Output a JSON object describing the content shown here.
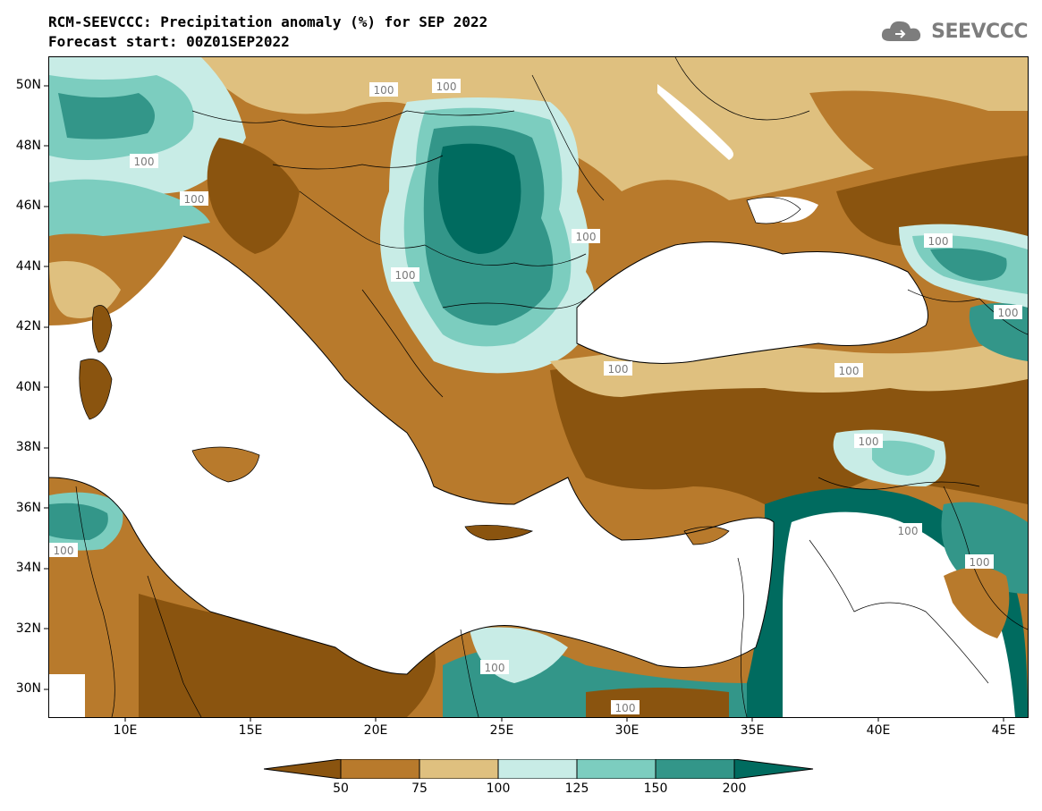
{
  "header": {
    "title_line1": "RCM-SEEVCCC: Precipitation anomaly (%) for SEP 2022",
    "title_line2": "Forecast start: 00Z01SEP2022",
    "logo_text": "SEEVCCC"
  },
  "map": {
    "lat_labels": [
      "50N",
      "48N",
      "46N",
      "44N",
      "42N",
      "40N",
      "38N",
      "36N",
      "34N",
      "32N",
      "30N"
    ],
    "lon_labels": [
      "10E",
      "15E",
      "20E",
      "25E",
      "30E",
      "35E",
      "40E",
      "45E"
    ],
    "contour_labels": [
      "100",
      "100",
      "100",
      "100",
      "100",
      "100",
      "100",
      "100",
      "100",
      "100",
      "100",
      "100",
      "100",
      "100",
      "100",
      "100"
    ]
  },
  "legend": {
    "tick_labels": [
      "50",
      "75",
      "100",
      "125",
      "150",
      "200"
    ],
    "colors": [
      "#8a540f",
      "#b87a2c",
      "#dfc07f",
      "#c8ece6",
      "#7ccdbf",
      "#339689",
      "#006b5f"
    ]
  }
}
